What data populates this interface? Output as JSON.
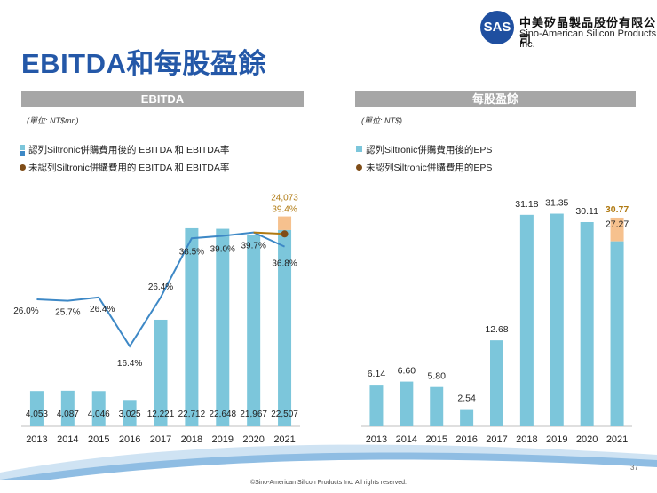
{
  "page": {
    "title": "EBITDA和每股盈餘",
    "company_cn": "中美矽晶製品股份有限公司",
    "company_en": "Sino-American Silicon Products Inc.",
    "logo_text": "SAS",
    "page_number": "37",
    "copyright": "©Sino-American Silicon Products Inc.  All rights reserved."
  },
  "colors": {
    "bar": "#7cc6db",
    "highlight": "#f6c18e",
    "line": "#3d88c6",
    "marker": "#7f4d18",
    "annotation": "#b07a12",
    "header_bg": "#a6a6a6",
    "title": "#2458a8"
  },
  "chart_data": [
    {
      "type": "bar",
      "panel_title": "EBITDA",
      "unit": "(單位: NT$mn)",
      "categories": [
        "2013",
        "2014",
        "2015",
        "2016",
        "2017",
        "2018",
        "2019",
        "2020",
        "2021"
      ],
      "legend": [
        {
          "label": "認列Siltronic併購費用後的 EBITDA 和 EBITDA率",
          "marker": "square"
        },
        {
          "label": "未認列Siltronic併購費用的 EBITDA 和 EBITDA率",
          "marker": "dot"
        }
      ],
      "series": [
        {
          "name": "EBITDA",
          "values": [
            4053,
            4087,
            4046,
            3025,
            12221,
            22712,
            22648,
            21967,
            22507
          ],
          "labels": [
            "4,053",
            "4,087",
            "4,046",
            "3,025",
            "12,221",
            "22,712",
            "22,648",
            "21,967",
            "22,507"
          ]
        },
        {
          "name": "EBITDA率",
          "values": [
            26.0,
            25.7,
            26.4,
            16.4,
            26.4,
            38.5,
            39.0,
            39.7,
            36.8
          ],
          "labels": [
            "26.0%",
            "25.7%",
            "26.4%",
            "16.4%",
            "26.4%",
            "38.5%",
            "39.0%",
            "39.7%",
            "36.8%"
          ]
        }
      ],
      "excluding_acquisition_cost": {
        "category": "2021",
        "ebitda": 24073,
        "ebitda_label": "24,073",
        "margin": 39.4,
        "margin_label": "39.4%"
      },
      "ylim_bars": [
        0,
        28000
      ],
      "ylim_line": [
        0,
        50
      ]
    },
    {
      "type": "bar",
      "panel_title": "每股盈餘",
      "unit": "(單位: NT$)",
      "categories": [
        "2013",
        "2014",
        "2015",
        "2016",
        "2017",
        "2018",
        "2019",
        "2020",
        "2021"
      ],
      "legend": [
        {
          "label": "認列Siltronic併購費用後的EPS",
          "marker": "square"
        },
        {
          "label": "未認列Siltronic併購費用的EPS",
          "marker": "dot"
        }
      ],
      "series": [
        {
          "name": "EPS",
          "values": [
            6.14,
            6.6,
            5.8,
            2.54,
            12.68,
            31.18,
            31.35,
            30.11,
            27.27
          ],
          "labels": [
            "6.14",
            "6.60",
            "5.80",
            "2.54",
            "12.68",
            "31.18",
            "31.35",
            "30.11",
            "27.27"
          ]
        }
      ],
      "excluding_acquisition_cost": {
        "category": "2021",
        "eps": 30.77,
        "eps_label": "30.77"
      },
      "ylim": [
        0,
        36
      ]
    }
  ]
}
